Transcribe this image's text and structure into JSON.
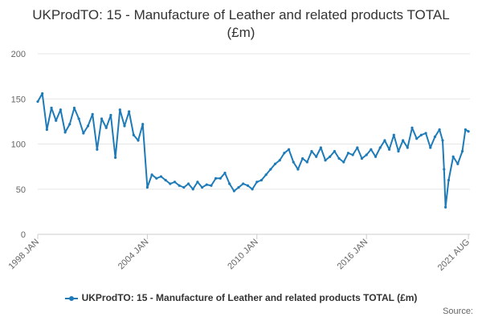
{
  "colors": {
    "series": "#1e7bb8",
    "grid": "#e6e6e6",
    "axis_text": "#666666",
    "title": "#333333"
  },
  "chart_data": {
    "type": "line",
    "title": "UKProdTO: 15 - Manufacture of Leather and related products TOTAL (£m)",
    "xlabel": "",
    "ylabel": "",
    "ylim": [
      0,
      200
    ],
    "yticks": [
      0,
      50,
      100,
      150,
      200
    ],
    "xlim": [
      1998.0,
      2021.667
    ],
    "xticks": [
      {
        "value": 1998.0,
        "label": "1998 JAN"
      },
      {
        "value": 2004.0,
        "label": "2004 JAN"
      },
      {
        "value": 2010.0,
        "label": "2010 JAN"
      },
      {
        "value": 2016.0,
        "label": "2016 JAN"
      },
      {
        "value": 2021.583,
        "label": "2021 AUG"
      }
    ],
    "legend": "bottom",
    "series": [
      {
        "name": "UKProdTO: 15 - Manufacture of Leather and related products TOTAL (£m)",
        "x": [
          1998.0,
          1998.25,
          1998.5,
          1998.75,
          1999.0,
          1999.25,
          1999.5,
          1999.75,
          2000.0,
          2000.25,
          2000.5,
          2000.75,
          2001.0,
          2001.25,
          2001.5,
          2001.75,
          2002.0,
          2002.25,
          2002.5,
          2002.75,
          2003.0,
          2003.25,
          2003.5,
          2003.75,
          2004.0,
          2004.25,
          2004.5,
          2004.75,
          2005.0,
          2005.25,
          2005.5,
          2005.75,
          2006.0,
          2006.25,
          2006.5,
          2006.75,
          2007.0,
          2007.25,
          2007.5,
          2007.75,
          2008.0,
          2008.25,
          2008.5,
          2008.75,
          2009.0,
          2009.25,
          2009.5,
          2009.75,
          2010.0,
          2010.25,
          2010.5,
          2010.75,
          2011.0,
          2011.25,
          2011.5,
          2011.75,
          2012.0,
          2012.25,
          2012.5,
          2012.75,
          2013.0,
          2013.25,
          2013.5,
          2013.75,
          2014.0,
          2014.25,
          2014.5,
          2014.75,
          2015.0,
          2015.25,
          2015.5,
          2015.75,
          2016.0,
          2016.25,
          2016.5,
          2016.75,
          2017.0,
          2017.25,
          2017.5,
          2017.75,
          2018.0,
          2018.25,
          2018.5,
          2018.75,
          2019.0,
          2019.25,
          2019.5,
          2019.75,
          2020.0,
          2020.17,
          2020.25,
          2020.33,
          2020.5,
          2020.75,
          2021.0,
          2021.25,
          2021.42,
          2021.583
        ],
        "values": [
          147,
          156,
          116,
          140,
          126,
          138,
          113,
          122,
          140,
          128,
          112,
          120,
          133,
          94,
          128,
          118,
          132,
          85,
          138,
          120,
          136,
          110,
          104,
          122,
          52,
          66,
          62,
          64,
          60,
          56,
          58,
          54,
          52,
          56,
          50,
          58,
          52,
          55,
          54,
          62,
          62,
          68,
          56,
          48,
          52,
          56,
          54,
          50,
          58,
          60,
          66,
          72,
          78,
          82,
          90,
          94,
          80,
          72,
          84,
          80,
          92,
          86,
          96,
          82,
          86,
          92,
          84,
          80,
          90,
          88,
          96,
          84,
          88,
          94,
          86,
          96,
          104,
          94,
          110,
          92,
          104,
          96,
          118,
          106,
          110,
          112,
          96,
          108,
          116,
          104,
          72,
          30,
          60,
          86,
          78,
          92,
          116,
          114
        ]
      }
    ]
  },
  "footer": {
    "source_label": "Source:"
  }
}
